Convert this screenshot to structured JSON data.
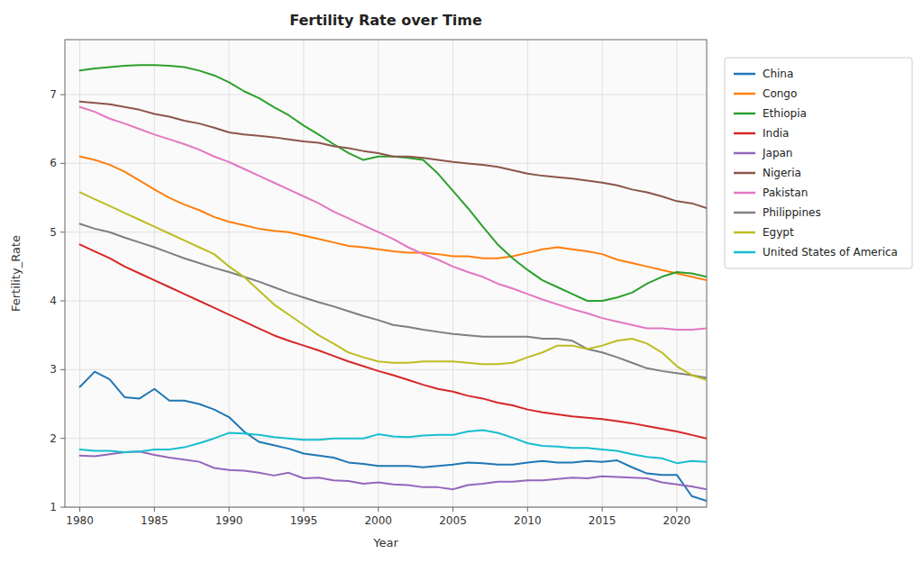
{
  "chart_data": {
    "type": "line",
    "title": "Fertility Rate over Time",
    "x_label": "Year",
    "y_label": "Fertility_Rate",
    "x": [
      1980,
      1981,
      1982,
      1983,
      1984,
      1985,
      1986,
      1987,
      1988,
      1989,
      1990,
      1991,
      1992,
      1993,
      1994,
      1995,
      1996,
      1997,
      1998,
      1999,
      2000,
      2001,
      2002,
      2003,
      2004,
      2005,
      2006,
      2007,
      2008,
      2009,
      2010,
      2011,
      2012,
      2013,
      2014,
      2015,
      2016,
      2017,
      2018,
      2019,
      2020,
      2021,
      2022
    ],
    "series": [
      {
        "name": "China",
        "color": "#1f77b4",
        "values": [
          2.75,
          2.97,
          2.86,
          2.6,
          2.58,
          2.72,
          2.55,
          2.55,
          2.5,
          2.42,
          2.31,
          2.1,
          1.95,
          1.9,
          1.85,
          1.78,
          1.75,
          1.72,
          1.65,
          1.63,
          1.6,
          1.6,
          1.6,
          1.58,
          1.6,
          1.62,
          1.65,
          1.64,
          1.62,
          1.62,
          1.65,
          1.67,
          1.65,
          1.65,
          1.67,
          1.66,
          1.68,
          1.58,
          1.49,
          1.47,
          1.47,
          1.16,
          1.09
        ]
      },
      {
        "name": "Congo",
        "color": "#ff7f0e",
        "values": [
          6.1,
          6.05,
          5.98,
          5.88,
          5.75,
          5.62,
          5.5,
          5.4,
          5.32,
          5.22,
          5.15,
          5.1,
          5.05,
          5.02,
          5.0,
          4.95,
          4.9,
          4.85,
          4.8,
          4.78,
          4.75,
          4.72,
          4.7,
          4.7,
          4.68,
          4.65,
          4.65,
          4.62,
          4.62,
          4.65,
          4.7,
          4.75,
          4.78,
          4.75,
          4.72,
          4.68,
          4.6,
          4.55,
          4.5,
          4.45,
          4.4,
          4.35,
          4.3
        ]
      },
      {
        "name": "Ethiopia",
        "color": "#2ca02c",
        "values": [
          7.35,
          7.38,
          7.4,
          7.42,
          7.43,
          7.43,
          7.42,
          7.4,
          7.35,
          7.28,
          7.18,
          7.05,
          6.95,
          6.82,
          6.7,
          6.55,
          6.42,
          6.28,
          6.15,
          6.05,
          6.1,
          6.1,
          6.08,
          6.05,
          5.85,
          5.6,
          5.35,
          5.08,
          4.82,
          4.62,
          4.45,
          4.3,
          4.2,
          4.1,
          4.0,
          4.0,
          4.05,
          4.12,
          4.25,
          4.35,
          4.42,
          4.4,
          4.35
        ]
      },
      {
        "name": "India",
        "color": "#d62728",
        "values": [
          4.82,
          4.72,
          4.62,
          4.5,
          4.4,
          4.3,
          4.2,
          4.1,
          4.0,
          3.9,
          3.8,
          3.7,
          3.6,
          3.5,
          3.42,
          3.35,
          3.28,
          3.2,
          3.12,
          3.05,
          2.98,
          2.92,
          2.85,
          2.78,
          2.72,
          2.68,
          2.62,
          2.58,
          2.52,
          2.48,
          2.42,
          2.38,
          2.35,
          2.32,
          2.3,
          2.28,
          2.25,
          2.22,
          2.18,
          2.14,
          2.1,
          2.05,
          2.0
        ]
      },
      {
        "name": "Japan",
        "color": "#9467bd",
        "values": [
          1.75,
          1.74,
          1.77,
          1.8,
          1.81,
          1.76,
          1.72,
          1.69,
          1.66,
          1.57,
          1.54,
          1.53,
          1.5,
          1.46,
          1.5,
          1.42,
          1.43,
          1.39,
          1.38,
          1.34,
          1.36,
          1.33,
          1.32,
          1.29,
          1.29,
          1.26,
          1.32,
          1.34,
          1.37,
          1.37,
          1.39,
          1.39,
          1.41,
          1.43,
          1.42,
          1.45,
          1.44,
          1.43,
          1.42,
          1.36,
          1.33,
          1.3,
          1.26
        ]
      },
      {
        "name": "Nigeria",
        "color": "#8c564b",
        "values": [
          6.9,
          6.88,
          6.86,
          6.82,
          6.78,
          6.72,
          6.68,
          6.62,
          6.58,
          6.52,
          6.45,
          6.42,
          6.4,
          6.38,
          6.35,
          6.32,
          6.3,
          6.25,
          6.22,
          6.18,
          6.15,
          6.1,
          6.1,
          6.08,
          6.05,
          6.02,
          6.0,
          5.98,
          5.95,
          5.9,
          5.85,
          5.82,
          5.8,
          5.78,
          5.75,
          5.72,
          5.68,
          5.62,
          5.58,
          5.52,
          5.45,
          5.42,
          5.35
        ]
      },
      {
        "name": "Pakistan",
        "color": "#e377c2",
        "values": [
          6.82,
          6.75,
          6.65,
          6.58,
          6.5,
          6.42,
          6.35,
          6.28,
          6.2,
          6.1,
          6.02,
          5.92,
          5.82,
          5.72,
          5.62,
          5.52,
          5.42,
          5.3,
          5.2,
          5.1,
          5.0,
          4.9,
          4.78,
          4.68,
          4.6,
          4.5,
          4.42,
          4.35,
          4.25,
          4.18,
          4.1,
          4.02,
          3.95,
          3.88,
          3.82,
          3.75,
          3.7,
          3.65,
          3.6,
          3.6,
          3.58,
          3.58,
          3.6
        ]
      },
      {
        "name": "Philippines",
        "color": "#7f7f7f",
        "values": [
          5.12,
          5.05,
          5.0,
          4.92,
          4.85,
          4.78,
          4.7,
          4.62,
          4.55,
          4.48,
          4.42,
          4.35,
          4.28,
          4.2,
          4.12,
          4.05,
          3.98,
          3.92,
          3.85,
          3.78,
          3.72,
          3.65,
          3.62,
          3.58,
          3.55,
          3.52,
          3.5,
          3.48,
          3.48,
          3.48,
          3.48,
          3.45,
          3.45,
          3.42,
          3.3,
          3.25,
          3.18,
          3.1,
          3.02,
          2.98,
          2.95,
          2.92,
          2.88
        ]
      },
      {
        "name": "Egypt",
        "color": "#bcbd22",
        "values": [
          5.58,
          5.48,
          5.38,
          5.28,
          5.18,
          5.08,
          4.98,
          4.88,
          4.78,
          4.68,
          4.5,
          4.35,
          4.15,
          3.95,
          3.8,
          3.65,
          3.5,
          3.38,
          3.25,
          3.18,
          3.12,
          3.1,
          3.1,
          3.12,
          3.12,
          3.12,
          3.1,
          3.08,
          3.08,
          3.1,
          3.18,
          3.25,
          3.35,
          3.35,
          3.3,
          3.35,
          3.42,
          3.45,
          3.38,
          3.25,
          3.05,
          2.92,
          2.85
        ]
      },
      {
        "name": "United States of America",
        "color": "#17becf",
        "values": [
          1.84,
          1.82,
          1.82,
          1.8,
          1.81,
          1.84,
          1.84,
          1.87,
          1.93,
          2.0,
          2.08,
          2.07,
          2.05,
          2.02,
          2.0,
          1.98,
          1.98,
          2.0,
          2.0,
          2.0,
          2.06,
          2.03,
          2.02,
          2.04,
          2.05,
          2.05,
          2.1,
          2.12,
          2.08,
          2.01,
          1.93,
          1.89,
          1.88,
          1.86,
          1.86,
          1.84,
          1.82,
          1.77,
          1.73,
          1.71,
          1.64,
          1.67,
          1.66
        ]
      }
    ],
    "xlim": [
      1979,
      2022
    ],
    "ylim": [
      1,
      7.8
    ],
    "xticks": [
      1980,
      1985,
      1990,
      1995,
      2000,
      2005,
      2010,
      2015,
      2020
    ],
    "yticks": [
      1,
      2,
      3,
      4,
      5,
      6,
      7
    ],
    "grid": true,
    "legend": "right"
  }
}
